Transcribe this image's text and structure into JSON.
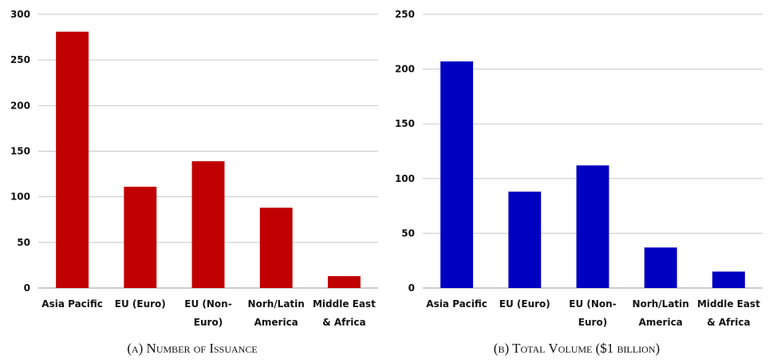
{
  "chart_data": [
    {
      "type": "bar",
      "categories": [
        [
          "Asia Pacific"
        ],
        [
          "EU (Euro)"
        ],
        [
          "EU (Non-",
          "Euro)"
        ],
        [
          "Norh/Latin",
          "America"
        ],
        [
          "Middle East",
          "& Africa"
        ]
      ],
      "values": [
        281,
        111,
        139,
        88,
        13
      ],
      "ylim": [
        0,
        300
      ],
      "yticks": [
        0,
        50,
        100,
        150,
        200,
        250,
        300
      ],
      "grid": true,
      "color": "#C00000",
      "caption": "(a) Number of Issuance"
    },
    {
      "type": "bar",
      "categories": [
        [
          "Asia Pacific"
        ],
        [
          "EU (Euro)"
        ],
        [
          "EU (Non-",
          "Euro)"
        ],
        [
          "Norh/Latin",
          "America"
        ],
        [
          "Middle East",
          "& Africa"
        ]
      ],
      "values": [
        207,
        88,
        112,
        37,
        15
      ],
      "ylim": [
        0,
        250
      ],
      "yticks": [
        0,
        50,
        100,
        150,
        200,
        250
      ],
      "grid": true,
      "color": "#0000C0",
      "caption": "(b) Total Volume ($1 billion)"
    }
  ]
}
